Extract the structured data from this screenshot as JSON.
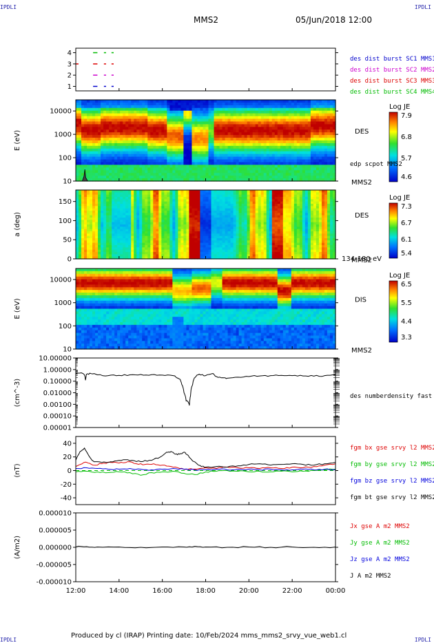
{
  "header": {
    "corner_tl": "IPDLI",
    "corner_tr": "IPDLI",
    "corner_bl": "IPDLI",
    "corner_br": "IPDLI",
    "spacecraft": "MMS2",
    "datetime": "05/Jun/2018 12:00"
  },
  "footer": {
    "text": "Produced by cl (IRAP)   Printing date: 10/Feb/2024   mms_mms2_srvy_vue_web1.cl"
  },
  "colors": {
    "mms1": "#0000cc",
    "mms2": "#cc00cc",
    "mms3": "#dd0000",
    "mms4": "#00bb00",
    "bx": "#dd0000",
    "by": "#00bb00",
    "bz": "#0000dd",
    "bt": "#000000"
  },
  "chart_data": [
    {
      "type": "scatter",
      "ylabel": "",
      "yticks": [
        "1",
        "2",
        "3",
        "4"
      ],
      "ylim": [
        0.6,
        4.4
      ],
      "legend": [
        {
          "name": "des dist burst SC1 MMS1",
          "color": "#0000cc",
          "level": 1
        },
        {
          "name": "des dist burst SC2 MMS2",
          "color": "#cc00cc",
          "level": 2
        },
        {
          "name": "des dist burst SC3 MMS3",
          "color": "#dd0000",
          "level": 3
        },
        {
          "name": "des dist burst SC4 MMS4",
          "color": "#00bb00",
          "level": 4
        }
      ],
      "segments_hours": [
        [
          12.8,
          13.0
        ],
        [
          13.3,
          13.4
        ],
        [
          13.65,
          13.75
        ]
      ]
    },
    {
      "type": "heatmap",
      "ylabel": "E (eV)",
      "yticks": [
        "10",
        "100",
        "1000",
        "10000"
      ],
      "yscale": "log",
      "ylim": [
        10,
        30000
      ],
      "label_right": "DES",
      "label_bottom": "MMS2",
      "overlay_label": "edp scpot MMS2",
      "colorbar": {
        "title": "Log JE",
        "ticks": [
          "7.9",
          "6.8",
          "5.7",
          "4.6"
        ],
        "range": [
          4.6,
          7.9
        ]
      }
    },
    {
      "type": "heatmap",
      "ylabel": "a (deg)",
      "yticks": [
        "0",
        "50",
        "100",
        "150"
      ],
      "ylim": [
        0,
        180
      ],
      "label_right": "DES",
      "label_bottom": "MMS2",
      "energy_label": "134-180 eV",
      "colorbar": {
        "title": "Log JE",
        "ticks": [
          "7.3",
          "6.7",
          "6.1",
          "5.4"
        ],
        "range": [
          5.4,
          7.3
        ]
      }
    },
    {
      "type": "heatmap",
      "ylabel": "E (eV)",
      "yticks": [
        "10",
        "100",
        "1000",
        "10000"
      ],
      "yscale": "log",
      "ylim": [
        10,
        30000
      ],
      "label_right": "DIS",
      "label_bottom": "MMS2",
      "colorbar": {
        "title": "Log JE",
        "ticks": [
          "6.5",
          "5.5",
          "4.4",
          "3.3"
        ],
        "range": [
          3.3,
          6.5
        ]
      }
    },
    {
      "type": "line",
      "ylabel": "(cm^-3)",
      "yscale": "log",
      "yticks": [
        "10.00000",
        "1.00000",
        "0.10000",
        "0.01000",
        "0.00100",
        "0.00010",
        "0.00001"
      ],
      "ylim": [
        1e-05,
        10
      ],
      "series": [
        {
          "name": "des numberdensity fast M",
          "x_hours": [
            12.0,
            12.2,
            12.4,
            12.45,
            12.5,
            12.7,
            13.0,
            13.5,
            14.0,
            14.5,
            15.0,
            15.5,
            16.0,
            16.5,
            16.8,
            16.9,
            17.0,
            17.1,
            17.2,
            17.25,
            17.3,
            17.4,
            17.5,
            17.7,
            18.0,
            18.3,
            18.5,
            18.8,
            19.0,
            19.5,
            20.0,
            20.5,
            21.0,
            21.5,
            22.0,
            22.5,
            23.0,
            23.5,
            24.0
          ],
          "values": [
            0.45,
            0.5,
            0.35,
            0.12,
            0.4,
            0.45,
            0.35,
            0.3,
            0.32,
            0.35,
            0.38,
            0.36,
            0.33,
            0.3,
            0.15,
            0.05,
            0.01,
            0.002,
            0.0015,
            0.0008,
            0.005,
            0.05,
            0.2,
            0.4,
            0.3,
            0.45,
            0.25,
            0.2,
            0.18,
            0.22,
            0.25,
            0.28,
            0.3,
            0.32,
            0.3,
            0.28,
            0.27,
            0.3,
            0.35
          ]
        }
      ]
    },
    {
      "type": "line",
      "ylabel": "(nT)",
      "yticks": [
        "40",
        "20",
        "0",
        "-20",
        "-40"
      ],
      "ylim": [
        -50,
        50
      ],
      "series": [
        {
          "name": "fgm bx gse srvy l2 MMS2",
          "color": "#dd0000",
          "x_hours": [
            12.0,
            12.3,
            12.5,
            12.8,
            13.2,
            13.6,
            14.0,
            14.4,
            14.8,
            15.2,
            15.6,
            16.0,
            16.4,
            16.8,
            17.2,
            17.6,
            18.0,
            18.5,
            19.0,
            19.5,
            20.0,
            20.5,
            21.0,
            21.5,
            22.0,
            22.5,
            23.0,
            23.5,
            24.0
          ],
          "values": [
            6,
            10,
            12,
            8,
            10,
            12,
            11,
            13,
            10,
            9,
            10,
            8,
            6,
            3,
            2,
            2,
            4,
            3,
            5,
            4,
            4,
            3,
            4,
            3,
            5,
            4,
            6,
            8,
            10
          ]
        },
        {
          "name": "fgm by gse srvy l2 MMS2",
          "color": "#00bb00",
          "x_hours": [
            12.0,
            12.5,
            13.0,
            13.5,
            14.0,
            14.5,
            15.0,
            15.5,
            16.0,
            16.5,
            17.0,
            17.5,
            18.0,
            18.5,
            19.0,
            19.5,
            20.0,
            20.5,
            21.0,
            21.5,
            22.0,
            22.5,
            23.0,
            23.5,
            24.0
          ],
          "values": [
            -2,
            -1,
            -2,
            -3,
            -2,
            -3,
            -7,
            -3,
            -2,
            -1,
            -4,
            -6,
            -2,
            -1,
            0,
            -1,
            -2,
            -1,
            -2,
            -1,
            -2,
            -1,
            0,
            1,
            2
          ]
        },
        {
          "name": "fgm bz gse srvy l2 MMS2",
          "color": "#0000dd",
          "x_hours": [
            12.0,
            12.5,
            13.0,
            13.5,
            14.0,
            14.5,
            15.0,
            15.5,
            16.0,
            16.5,
            17.0,
            17.5,
            18.0,
            18.5,
            19.0,
            19.5,
            20.0,
            20.5,
            21.0,
            21.5,
            22.0,
            22.5,
            23.0,
            23.5,
            24.0
          ],
          "values": [
            3,
            4,
            3,
            2,
            2,
            3,
            2,
            1,
            2,
            3,
            2,
            1,
            1,
            2,
            1,
            2,
            2,
            1,
            2,
            1,
            1,
            2,
            1,
            2,
            1
          ]
        },
        {
          "name": "fgm bt gse srvy l2 MMS2",
          "color": "#000000",
          "x_hours": [
            12.0,
            12.2,
            12.4,
            12.6,
            12.8,
            13.0,
            13.4,
            13.8,
            14.2,
            14.6,
            15.0,
            15.4,
            15.8,
            16.2,
            16.4,
            16.6,
            16.8,
            17.0,
            17.2,
            17.4,
            17.6,
            17.8,
            18.0,
            18.5,
            19.0,
            19.5,
            20.0,
            20.5,
            21.0,
            21.5,
            22.0,
            22.5,
            23.0,
            23.5,
            24.0
          ],
          "values": [
            15,
            28,
            33,
            22,
            14,
            13,
            12,
            14,
            16,
            15,
            13,
            15,
            18,
            27,
            28,
            24,
            24,
            27,
            22,
            14,
            10,
            6,
            5,
            6,
            5,
            7,
            9,
            10,
            8,
            9,
            10,
            9,
            8,
            10,
            12
          ]
        }
      ]
    },
    {
      "type": "line",
      "ylabel": "(A/m2)",
      "yticks": [
        "0.000010",
        "0.000005",
        "0.000000",
        "-0.000005",
        "-0.000010"
      ],
      "ylim": [
        -1e-05,
        1e-05
      ],
      "xticks": [
        "12:00",
        "14:00",
        "16:00",
        "18:00",
        "20:00",
        "22:00",
        "00:00"
      ],
      "series": [
        {
          "name": "Jx gse A m2 MMS2",
          "color": "#dd0000"
        },
        {
          "name": "Jy gse A m2 MMS2",
          "color": "#00bb00"
        },
        {
          "name": "Jz gse A m2 MMS2",
          "color": "#0000dd"
        },
        {
          "name": "J A m2 MMS2",
          "color": "#000000",
          "x_hours": [
            12.0,
            12.5,
            13.0,
            14.0,
            15.0,
            16.0,
            17.0,
            17.5,
            18.0,
            19.0,
            20.0,
            21.0,
            22.0,
            23.0,
            24.0
          ],
          "values": [
            1e-07,
            2e-07,
            1e-07,
            1e-07,
            0.0,
            1e-07,
            1e-07,
            3e-07,
            1e-07,
            0.0,
            1e-07,
            0.0,
            1e-07,
            0.0,
            1e-07
          ]
        }
      ]
    }
  ]
}
